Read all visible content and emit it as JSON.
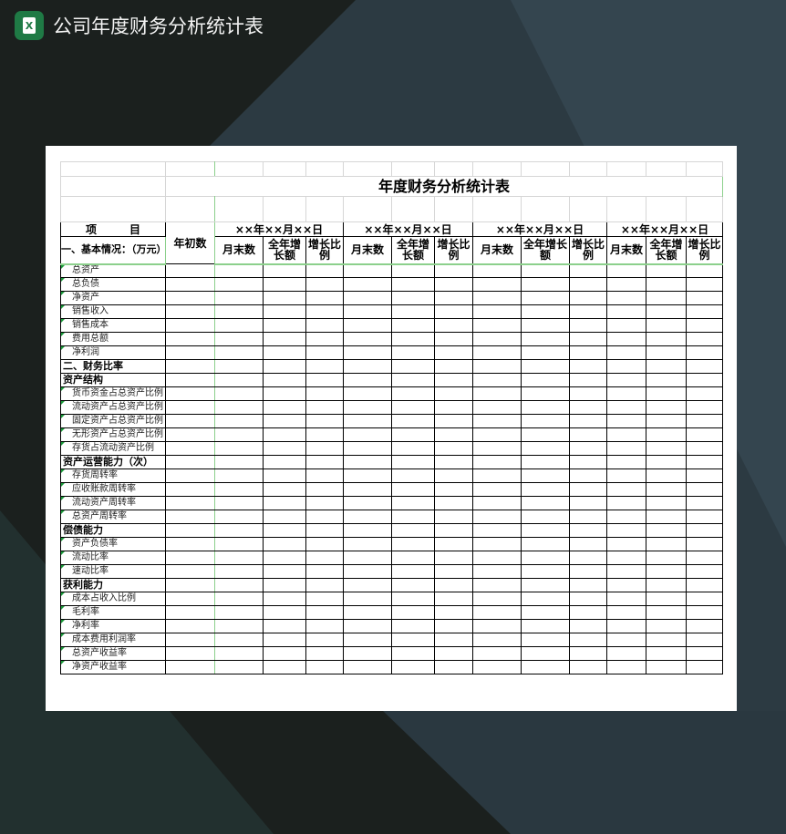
{
  "app": {
    "title": "公司年度财务分析统计表",
    "icon": "excel-icon",
    "icon_letter": "X"
  },
  "sheet": {
    "title": "年度财务分析统计表",
    "item_header": "项　　　目",
    "section1_header": "一、基本情况：（万元）",
    "opening_label": "年初数",
    "date_groups": [
      {
        "date": "××年××月××日",
        "cols": [
          "月末数",
          "全年增长额",
          "增长比例"
        ]
      },
      {
        "date": "××年××月××日",
        "cols": [
          "月末数",
          "全年增长额",
          "增长比例"
        ]
      },
      {
        "date": "××年××月××日",
        "cols": [
          "月末数",
          "全年增长额",
          "增长比例"
        ]
      },
      {
        "date": "××年××月××日",
        "cols": [
          "月末数",
          "全年增长额",
          "增长比例"
        ]
      }
    ],
    "rows": [
      {
        "label": "总资产",
        "type": "item"
      },
      {
        "label": "总负债",
        "type": "item"
      },
      {
        "label": "净资产",
        "type": "item"
      },
      {
        "label": "销售收入",
        "type": "item"
      },
      {
        "label": "销售成本",
        "type": "item"
      },
      {
        "label": "费用总额",
        "type": "item"
      },
      {
        "label": "净利润",
        "type": "item"
      },
      {
        "label": "二、财务比率",
        "type": "sec"
      },
      {
        "label": "资产结构",
        "type": "sec"
      },
      {
        "label": "货币资金占总资产比例",
        "type": "item"
      },
      {
        "label": "流动资产占总资产比例",
        "type": "item"
      },
      {
        "label": "固定资产占总资产比例",
        "type": "item"
      },
      {
        "label": "无形资产占总资产比例",
        "type": "item"
      },
      {
        "label": "存货占流动资产比例",
        "type": "item"
      },
      {
        "label": "资产运营能力（次）",
        "type": "sec"
      },
      {
        "label": "存货周转率",
        "type": "item"
      },
      {
        "label": "应收账款周转率",
        "type": "item"
      },
      {
        "label": "流动资产周转率",
        "type": "item"
      },
      {
        "label": "总资产周转率",
        "type": "item"
      },
      {
        "label": "偿债能力",
        "type": "sec"
      },
      {
        "label": "资产负债率",
        "type": "item"
      },
      {
        "label": "流动比率",
        "type": "item"
      },
      {
        "label": "速动比率",
        "type": "item"
      },
      {
        "label": "获利能力",
        "type": "sec"
      },
      {
        "label": "成本占收入比例",
        "type": "item"
      },
      {
        "label": "毛利率",
        "type": "item"
      },
      {
        "label": "净利率",
        "type": "item"
      },
      {
        "label": "成本费用利润率",
        "type": "item"
      },
      {
        "label": "总资产收益率",
        "type": "item"
      },
      {
        "label": "净资产收益率",
        "type": "item"
      }
    ]
  }
}
